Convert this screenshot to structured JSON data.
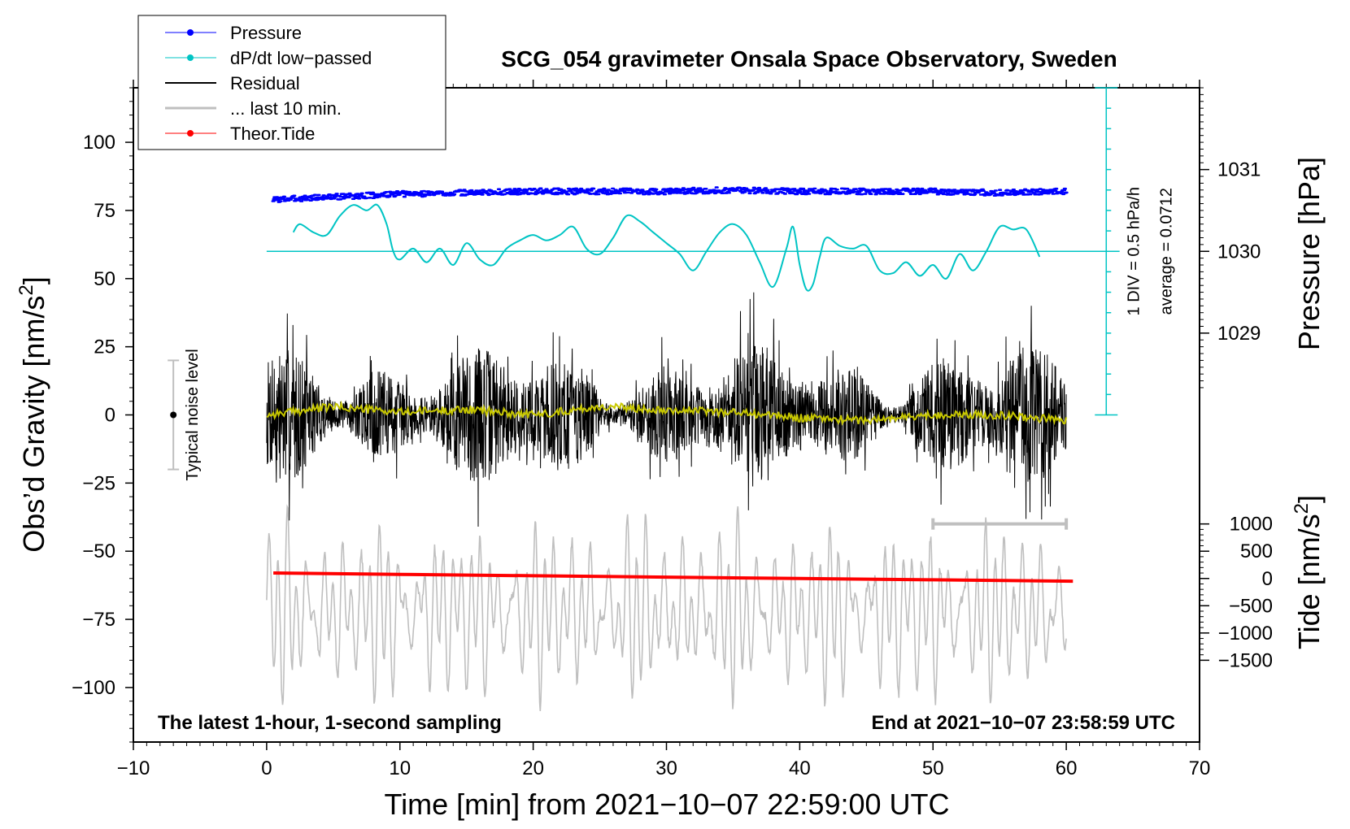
{
  "chart_data": {
    "type": "line",
    "title": "SCG_054 gravimeter Onsala Space Observatory, Sweden",
    "xlabel": "Time [min] from 2021−10−07 22:59:00 UTC",
    "ylabel": "Obs’d Gravity [nm/s²]",
    "ylabel_main": "Obs’d Gravity [nm/s",
    "ylabel_sup": "2",
    "ylabel_end": "]",
    "xlim": [
      -10,
      70
    ],
    "ylim": [
      -120,
      120
    ],
    "x_ticks": [
      -10,
      0,
      10,
      20,
      30,
      40,
      50,
      60,
      70
    ],
    "x_tick_labels": [
      "−10",
      "0",
      "10",
      "20",
      "30",
      "40",
      "50",
      "60",
      "70"
    ],
    "y_ticks": [
      -100,
      -75,
      -50,
      -25,
      0,
      25,
      50,
      75,
      100
    ],
    "y_tick_labels": [
      "−100",
      "−75",
      "−50",
      "−25",
      "0",
      "25",
      "50",
      "75",
      "100"
    ],
    "pressure_axis": {
      "label": "Pressure [hPa]",
      "ticks": [
        1029,
        1030,
        1031
      ],
      "tick_labels": [
        "1029",
        "1030",
        "1031"
      ],
      "gravity_at": [
        30,
        60,
        90
      ]
    },
    "tide_axis": {
      "label_main": "Tide [nm/s",
      "label_sup": "2",
      "label_end": "]",
      "ticks": [
        1000,
        500,
        0,
        -500,
        -1000,
        -1500
      ],
      "tick_labels": [
        "1000",
        "500",
        "0",
        "−500",
        "−1000",
        "−1500"
      ],
      "gravity_per_unit": 0.02,
      "offset": -60
    },
    "dpdt_scale": {
      "label_div": "1 DIV = 0.5 hPa/h",
      "label_avg": "average = 0.0712",
      "x": 63,
      "y_range": [
        0,
        120
      ],
      "baseline_y": 60,
      "divisions": 16
    },
    "noise_bar": {
      "label": "Typical noise level",
      "x": -7,
      "y": 0,
      "half_range": 20
    },
    "window_bar": {
      "x_range": [
        50,
        60
      ],
      "y": -40
    },
    "notes": {
      "left": "The latest 1-hour, 1-second sampling",
      "right": "End at 2021−10−07 23:58:59 UTC"
    },
    "legend": [
      {
        "label": "Pressure",
        "color": "#0000ff",
        "marker": true,
        "width": 1
      },
      {
        "label": "dP/dt low−passed",
        "color": "#00c4c4",
        "marker": true,
        "width": 1
      },
      {
        "label": "Residual",
        "color": "#000000",
        "marker": false,
        "width": 2
      },
      {
        "label": "... last 10 min.",
        "color": "#bfbfbf",
        "marker": false,
        "width": 3
      },
      {
        "label": "Theor.Tide",
        "color": "#ff0000",
        "marker": true,
        "width": 1
      }
    ],
    "series": [
      {
        "name": "Pressure",
        "color": "#0000ff",
        "x": [
          0.5,
          5,
          10,
          15,
          20,
          25,
          30,
          35,
          40,
          45,
          50,
          55,
          60
        ],
        "y": [
          79,
          80,
          81,
          81.5,
          82,
          82,
          82,
          82.5,
          82,
          82,
          82,
          81.5,
          82
        ]
      },
      {
        "name": "dP/dt low-passed",
        "color": "#00c4c4",
        "x": [
          2,
          2.5,
          3.5,
          4.5,
          5.5,
          6.5,
          7.5,
          8.3,
          9,
          9.5,
          10,
          11,
          12,
          13,
          14,
          15,
          16,
          17,
          18,
          19,
          20,
          21,
          22,
          23,
          24,
          25,
          26,
          27,
          28,
          29,
          30,
          31,
          32,
          33,
          34,
          35,
          36,
          37,
          38,
          39,
          39.5,
          40,
          40.5,
          41,
          41.5,
          42,
          43,
          44,
          45,
          46,
          47,
          48,
          49,
          50,
          51,
          52,
          53,
          54,
          55,
          56,
          57,
          58
        ],
        "y": [
          67,
          70,
          67,
          66,
          73,
          77,
          75,
          77,
          70,
          60,
          57,
          61,
          56,
          61,
          55,
          63,
          57,
          55,
          61,
          64,
          66,
          64,
          66,
          69,
          61,
          59,
          65,
          73,
          71,
          67,
          63,
          59,
          53,
          60,
          67,
          70,
          66,
          56,
          47,
          61,
          69,
          55,
          46,
          48,
          58,
          65,
          62,
          61,
          62,
          53,
          52,
          56,
          51,
          55,
          50,
          59,
          53,
          60,
          69,
          68,
          68,
          58
        ]
      },
      {
        "name": "Residual",
        "color": "#000000",
        "x": [
          0,
          60
        ],
        "y": [
          0,
          0
        ],
        "amplitude": 45
      },
      {
        "name": "... last 10 min.",
        "color": "#bfbfbf",
        "x": [
          0,
          60
        ],
        "y": [
          -72,
          -72
        ],
        "amplitude": 30
      },
      {
        "name": "Residual smoothed",
        "color": "#c8c800",
        "x": [
          0,
          5,
          10,
          15,
          20,
          25,
          30,
          35,
          40,
          45,
          50,
          55,
          60
        ],
        "y": [
          0,
          3,
          1,
          2,
          0,
          3,
          2,
          1,
          -1,
          -2,
          0,
          0,
          -2
        ]
      },
      {
        "name": "Theor.Tide",
        "color": "#ff0000",
        "x": [
          0.5,
          10,
          20,
          30,
          40,
          50,
          60.5
        ],
        "y": [
          -58,
          -58.5,
          -59,
          -59.5,
          -60,
          -60.5,
          -61
        ]
      }
    ]
  }
}
